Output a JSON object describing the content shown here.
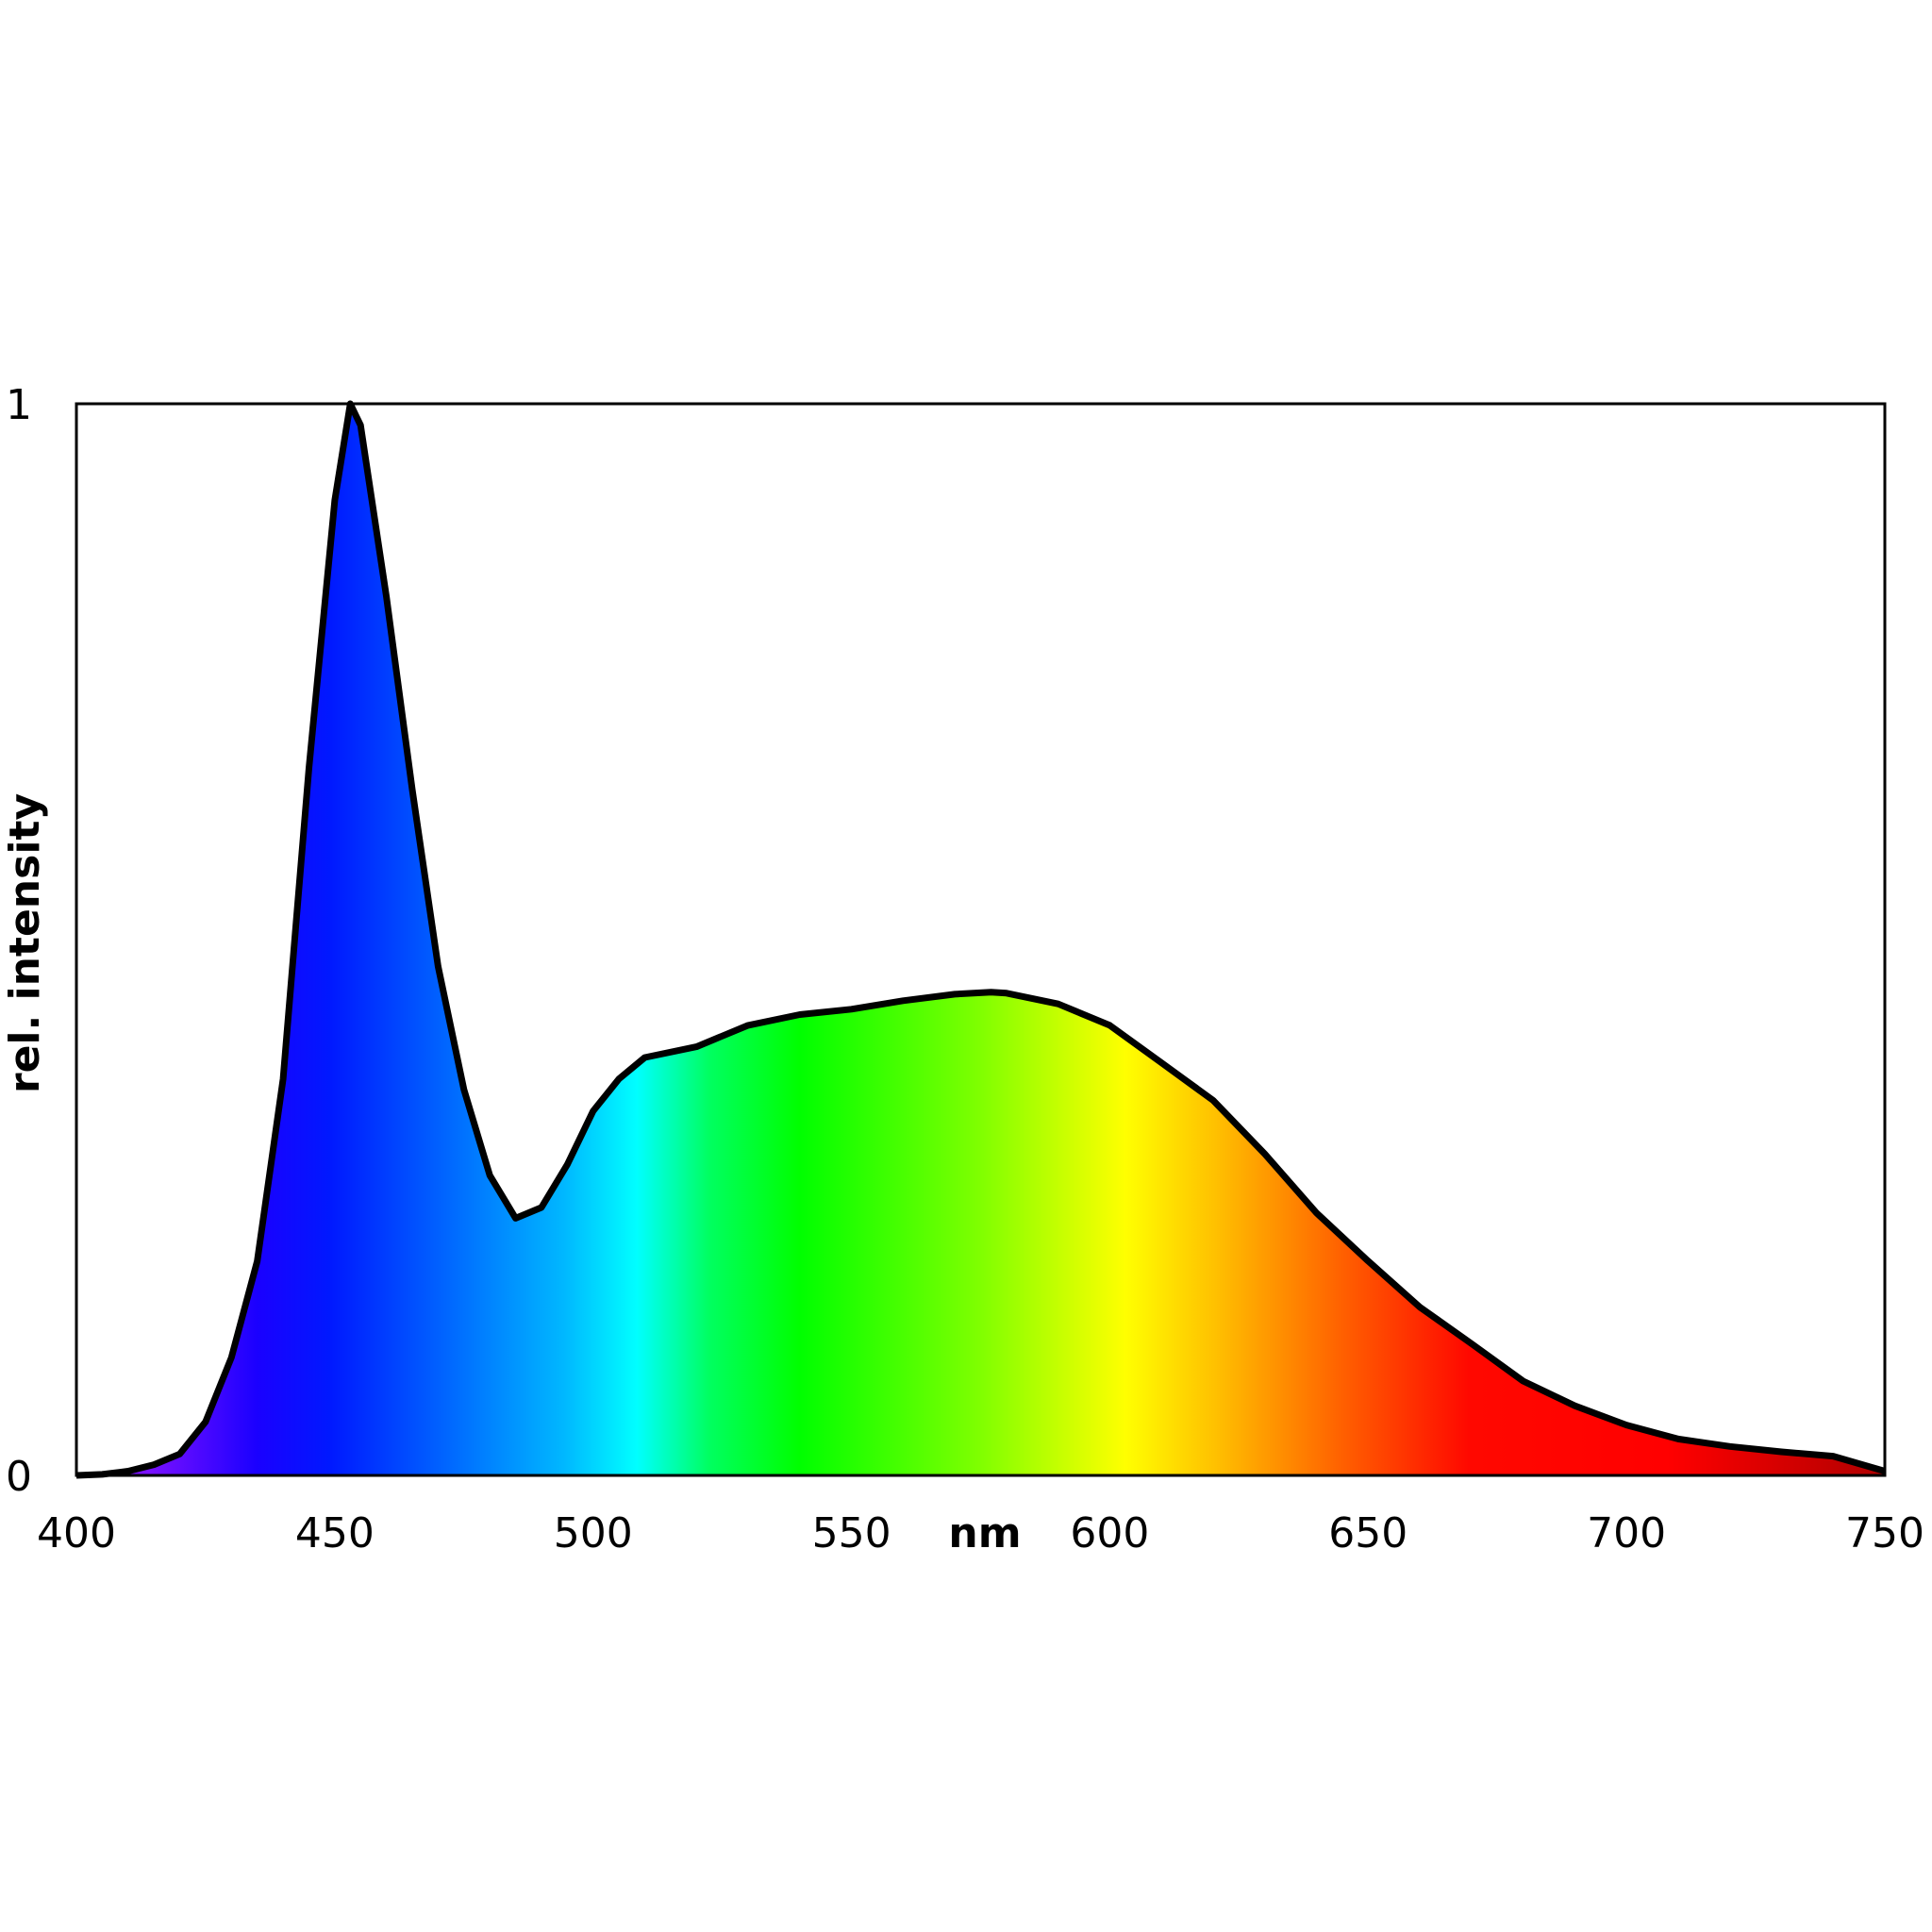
{
  "chart_data": {
    "type": "area",
    "x_label": "nm",
    "y_label": "rel. intensity",
    "x": [
      400,
      405,
      410,
      415,
      420,
      425,
      430,
      435,
      440,
      445,
      450,
      453,
      455,
      460,
      465,
      470,
      475,
      480,
      485,
      490,
      495,
      500,
      505,
      510,
      520,
      530,
      540,
      550,
      560,
      570,
      577,
      580,
      590,
      600,
      610,
      620,
      630,
      640,
      650,
      660,
      670,
      680,
      690,
      700,
      710,
      720,
      730,
      740,
      750
    ],
    "series": [
      {
        "color": "#000000",
        "values": [
          0,
          0.001,
          0.004,
          0.01,
          0.02,
          0.05,
          0.11,
          0.2,
          0.37,
          0.66,
          0.91,
          1.0,
          0.98,
          0.82,
          0.64,
          0.475,
          0.36,
          0.28,
          0.24,
          0.25,
          0.29,
          0.34,
          0.37,
          0.39,
          0.4,
          0.42,
          0.43,
          0.435,
          0.443,
          0.449,
          0.451,
          0.45,
          0.44,
          0.42,
          0.385,
          0.35,
          0.3,
          0.245,
          0.2,
          0.157,
          0.123,
          0.088,
          0.065,
          0.047,
          0.034,
          0.027,
          0.022,
          0.018,
          0.004
        ]
      }
    ],
    "xlim": [
      400,
      750
    ],
    "xticks": [
      400,
      450,
      500,
      550,
      600,
      650,
      700,
      750
    ],
    "ylim": [
      0,
      1
    ],
    "yticks": [
      0,
      1
    ]
  }
}
